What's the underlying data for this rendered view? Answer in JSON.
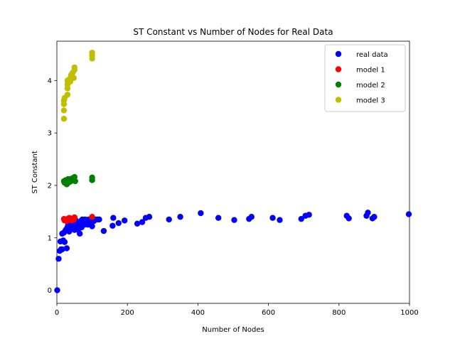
{
  "chart_data": {
    "type": "scatter",
    "title": "ST Constant vs Number of Nodes for Real Data",
    "xlabel": "Number of Nodes",
    "ylabel": "ST Constant",
    "xlim": [
      0,
      1000
    ],
    "ylim": [
      -0.25,
      4.75
    ],
    "xticks": [
      0,
      200,
      400,
      600,
      800,
      1000
    ],
    "yticks": [
      0,
      1,
      2,
      3,
      4
    ],
    "grid": false,
    "legend_position": "top-right",
    "series": [
      {
        "name": "real data",
        "color": "#0000ff",
        "points": [
          [
            1,
            0.0
          ],
          [
            5,
            0.6
          ],
          [
            8,
            0.75
          ],
          [
            10,
            0.93
          ],
          [
            12,
            0.78
          ],
          [
            15,
            0.78
          ],
          [
            15,
            1.08
          ],
          [
            18,
            0.95
          ],
          [
            20,
            1.1
          ],
          [
            22,
            0.92
          ],
          [
            25,
            1.15
          ],
          [
            28,
            0.8
          ],
          [
            30,
            1.2
          ],
          [
            32,
            1.25
          ],
          [
            35,
            1.12
          ],
          [
            38,
            1.18
          ],
          [
            40,
            1.28
          ],
          [
            42,
            1.22
          ],
          [
            45,
            1.3
          ],
          [
            48,
            1.25
          ],
          [
            50,
            1.15
          ],
          [
            52,
            1.35
          ],
          [
            55,
            1.2
          ],
          [
            58,
            1.3
          ],
          [
            60,
            1.15
          ],
          [
            62,
            1.28
          ],
          [
            65,
            1.08
          ],
          [
            68,
            1.32
          ],
          [
            70,
            1.2
          ],
          [
            72,
            1.35
          ],
          [
            75,
            1.3
          ],
          [
            78,
            1.25
          ],
          [
            80,
            1.35
          ],
          [
            85,
            1.3
          ],
          [
            88,
            1.25
          ],
          [
            90,
            1.35
          ],
          [
            95,
            1.3
          ],
          [
            98,
            1.28
          ],
          [
            100,
            1.22
          ],
          [
            105,
            1.32
          ],
          [
            110,
            1.35
          ],
          [
            115,
            1.35
          ],
          [
            120,
            1.35
          ],
          [
            133,
            1.13
          ],
          [
            158,
            1.23
          ],
          [
            160,
            1.38
          ],
          [
            175,
            1.28
          ],
          [
            192,
            1.33
          ],
          [
            228,
            1.27
          ],
          [
            242,
            1.3
          ],
          [
            252,
            1.38
          ],
          [
            262,
            1.4
          ],
          [
            318,
            1.35
          ],
          [
            350,
            1.4
          ],
          [
            408,
            1.47
          ],
          [
            458,
            1.38
          ],
          [
            503,
            1.34
          ],
          [
            545,
            1.36
          ],
          [
            552,
            1.4
          ],
          [
            612,
            1.38
          ],
          [
            632,
            1.34
          ],
          [
            693,
            1.36
          ],
          [
            705,
            1.42
          ],
          [
            715,
            1.44
          ],
          [
            822,
            1.42
          ],
          [
            828,
            1.37
          ],
          [
            878,
            1.42
          ],
          [
            882,
            1.48
          ],
          [
            895,
            1.37
          ],
          [
            900,
            1.4
          ],
          [
            998,
            1.45
          ]
        ]
      },
      {
        "name": "model 1",
        "color": "#ff0000",
        "points": [
          [
            20,
            1.36
          ],
          [
            22,
            1.33
          ],
          [
            25,
            1.35
          ],
          [
            28,
            1.32
          ],
          [
            30,
            1.36
          ],
          [
            32,
            1.34
          ],
          [
            35,
            1.38
          ],
          [
            38,
            1.34
          ],
          [
            40,
            1.36
          ],
          [
            42,
            1.33
          ],
          [
            45,
            1.37
          ],
          [
            48,
            1.35
          ],
          [
            50,
            1.39
          ],
          [
            100,
            1.4
          ]
        ]
      },
      {
        "name": "model 2",
        "color": "#008000",
        "points": [
          [
            20,
            2.08
          ],
          [
            22,
            2.05
          ],
          [
            25,
            2.1
          ],
          [
            28,
            2.02
          ],
          [
            30,
            2.08
          ],
          [
            32,
            2.12
          ],
          [
            35,
            2.06
          ],
          [
            38,
            2.1
          ],
          [
            40,
            2.08
          ],
          [
            42,
            2.13
          ],
          [
            45,
            2.1
          ],
          [
            48,
            2.14
          ],
          [
            50,
            2.16
          ],
          [
            52,
            2.08
          ],
          [
            100,
            2.1
          ],
          [
            100,
            2.15
          ]
        ]
      },
      {
        "name": "model 3",
        "color": "#bfbf00",
        "points": [
          [
            20,
            3.27
          ],
          [
            20,
            3.43
          ],
          [
            20,
            3.55
          ],
          [
            20,
            3.62
          ],
          [
            22,
            3.67
          ],
          [
            30,
            3.73
          ],
          [
            30,
            3.85
          ],
          [
            30,
            3.92
          ],
          [
            30,
            4.0
          ],
          [
            32,
            3.95
          ],
          [
            35,
            4.02
          ],
          [
            38,
            3.98
          ],
          [
            40,
            4.1
          ],
          [
            42,
            4.12
          ],
          [
            45,
            4.15
          ],
          [
            48,
            4.05
          ],
          [
            50,
            4.2
          ],
          [
            50,
            4.25
          ],
          [
            100,
            4.42
          ],
          [
            100,
            4.48
          ],
          [
            100,
            4.53
          ]
        ]
      }
    ]
  }
}
